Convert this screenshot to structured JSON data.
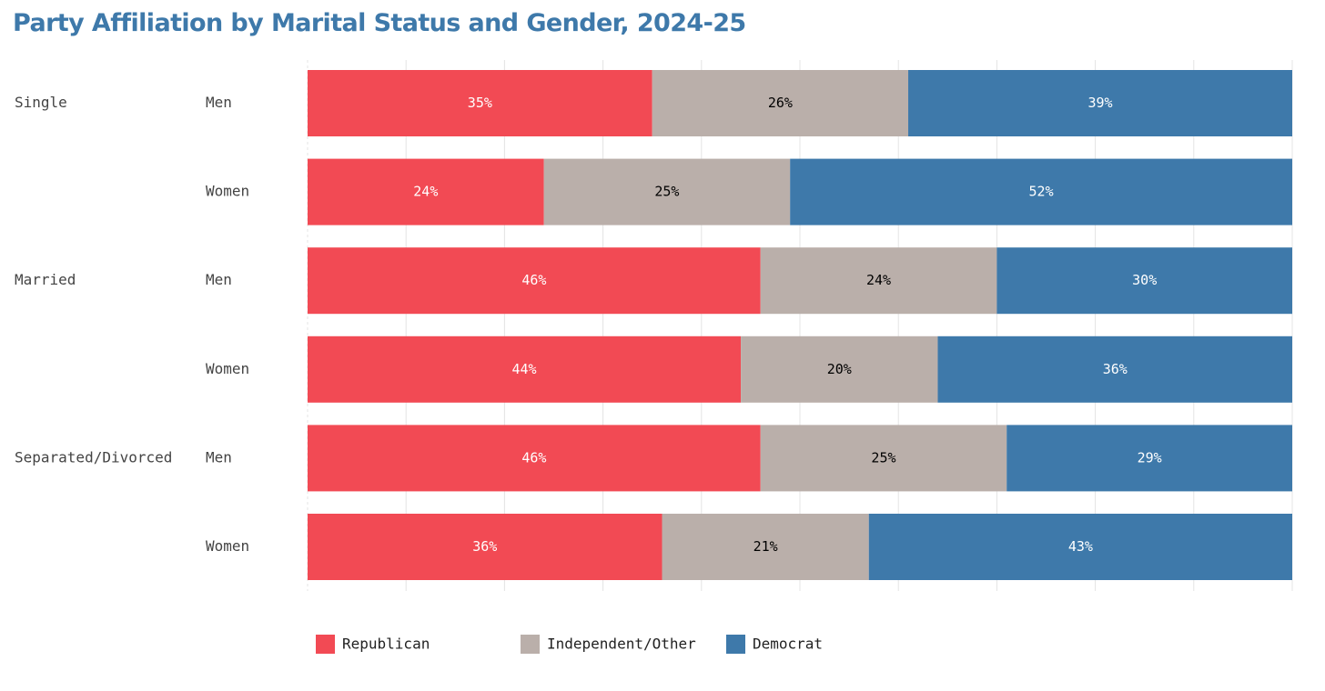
{
  "title": "Party Affiliation by Marital Status and Gender, 2024-25",
  "chart_data": {
    "type": "bar",
    "orientation": "horizontal",
    "stacked": true,
    "title": "Party Affiliation by Marital Status and Gender, 2024-25",
    "groups": [
      {
        "label": "Single",
        "rows": [
          0,
          1
        ]
      },
      {
        "label": "Married",
        "rows": [
          2,
          3
        ]
      },
      {
        "label": "Separated/Divorced",
        "rows": [
          4,
          5
        ]
      }
    ],
    "categories": [
      "Men",
      "Women",
      "Men",
      "Women",
      "Men",
      "Women"
    ],
    "series": [
      {
        "name": "Republican",
        "color": "#f24a54",
        "label_color": "#ffffff",
        "values": [
          35,
          24,
          46,
          44,
          46,
          36
        ]
      },
      {
        "name": "Independent/Other",
        "color": "#baafaa",
        "label_color": "#000000",
        "values": [
          26,
          25,
          24,
          20,
          25,
          21
        ]
      },
      {
        "name": "Democrat",
        "color": "#3e79aa",
        "label_color": "#ffffff",
        "values": [
          39,
          52,
          30,
          36,
          29,
          43
        ]
      }
    ],
    "value_suffix": "%",
    "xlim": [
      0,
      100
    ],
    "grid": true,
    "legend_position": "bottom-left"
  }
}
